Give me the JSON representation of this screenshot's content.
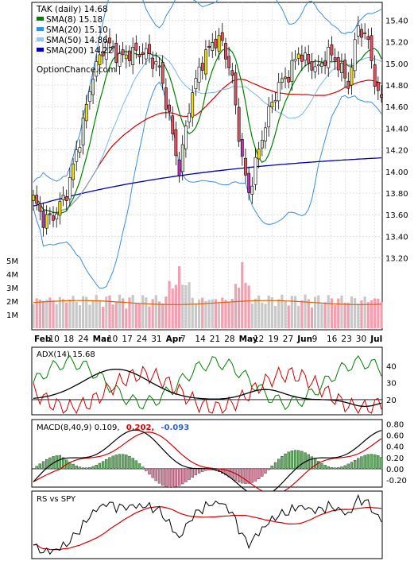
{
  "chart_data": [
    {
      "panel": "price",
      "type": "candlestick",
      "ticker_label": "TAK (daily) 14.68",
      "legend": [
        {
          "label": "SMA(8) 15.18",
          "color": "#008000"
        },
        {
          "label": "SMA(20) 15.10",
          "color": "#3a8ee0"
        },
        {
          "label": "SMA(50) 14.86",
          "color": "#8ccbf0"
        },
        {
          "label": "SMA(200) 14.22",
          "color": "#0000aa"
        }
      ],
      "watermark": "OptionChance.com",
      "legend_placement": "top-left",
      "y_axis": {
        "side": "right",
        "ticks": [
          "15.40",
          "15.20",
          "15.00",
          "14.80",
          "14.60",
          "14.40",
          "14.20",
          "14.00",
          "13.80",
          "13.60",
          "13.40",
          "13.20"
        ],
        "ylim": [
          13.05,
          15.55
        ]
      },
      "x_ticks": [
        "Feb",
        "10",
        "18",
        "24",
        "Mar",
        "10",
        "17",
        "24",
        "31",
        "Apr",
        "7",
        "14",
        "21",
        "28",
        "May",
        "12",
        "19",
        "27",
        "Jun",
        "9",
        "16",
        "23",
        "30",
        "Jul"
      ],
      "colors": {
        "up_candle": "#d0e0c8",
        "down_candle": "#e85060",
        "candle_outline": "#000000",
        "bollinger": "#3a8ee0",
        "sma8": "#008000",
        "sma20_red": "#d00000",
        "sma200": "#0000aa",
        "highlight": "#f0e000",
        "big_candle": "#c030c0"
      },
      "price_anchors": [
        {
          "day": 0,
          "close": 13.75
        },
        {
          "day": 3,
          "close": 13.55
        },
        {
          "day": 6,
          "close": 13.58
        },
        {
          "day": 10,
          "close": 13.8
        },
        {
          "day": 14,
          "close": 14.3
        },
        {
          "day": 18,
          "close": 14.9
        },
        {
          "day": 22,
          "close": 15.2
        },
        {
          "day": 26,
          "close": 15.05
        },
        {
          "day": 30,
          "close": 15.1
        },
        {
          "day": 34,
          "close": 15.1
        },
        {
          "day": 38,
          "close": 14.95
        },
        {
          "day": 41,
          "close": 14.5
        },
        {
          "day": 44,
          "close": 14.0
        },
        {
          "day": 47,
          "close": 14.6
        },
        {
          "day": 50,
          "close": 14.95
        },
        {
          "day": 54,
          "close": 15.2
        },
        {
          "day": 57,
          "close": 15.2
        },
        {
          "day": 60,
          "close": 14.85
        },
        {
          "day": 63,
          "close": 14.1
        },
        {
          "day": 65,
          "close": 13.8
        },
        {
          "day": 68,
          "close": 14.2
        },
        {
          "day": 71,
          "close": 14.55
        },
        {
          "day": 74,
          "close": 14.8
        },
        {
          "day": 77,
          "close": 14.9
        },
        {
          "day": 80,
          "close": 15.1
        },
        {
          "day": 83,
          "close": 15.0
        },
        {
          "day": 86,
          "close": 14.95
        },
        {
          "day": 89,
          "close": 15.1
        },
        {
          "day": 92,
          "close": 15.0
        },
        {
          "day": 95,
          "close": 14.8
        },
        {
          "day": 98,
          "close": 15.35
        },
        {
          "day": 101,
          "close": 15.2
        },
        {
          "day": 104,
          "close": 14.68
        }
      ]
    },
    {
      "panel": "volume",
      "type": "bar",
      "y_ticks": [
        "5M",
        "4M",
        "3M",
        "2M",
        "1M"
      ],
      "ylim": [
        0,
        5.6
      ],
      "series_colors": {
        "up": "#c8c8c8",
        "down": "#f0a0b0",
        "avg": "#e06000"
      },
      "avg_level": 1.9
    },
    {
      "panel": "adx",
      "type": "line",
      "label": "ADX(14) 15.68",
      "y_ticks": [
        "40",
        "30",
        "20"
      ],
      "ylim": [
        12,
        50
      ],
      "series_colors": {
        "adx": "#000000",
        "plus_di": "#008000",
        "minus_di": "#d00000"
      }
    },
    {
      "panel": "macd",
      "type": "line",
      "label_parts": [
        {
          "text": "MACD(8,40,9) 0.109,",
          "color": "#000000"
        },
        {
          "text": "0.202,",
          "color": "#d00000"
        },
        {
          "text": "-0.093",
          "color": "#3060c0"
        }
      ],
      "y_ticks": [
        "0.80",
        "0.60",
        "0.40",
        "0.20",
        "0.00",
        "-0.20"
      ],
      "ylim": [
        -0.3,
        0.85
      ],
      "series_colors": {
        "macd": "#000000",
        "signal": "#d00000",
        "hist_pos": "#60b060",
        "hist_neg": "#e080a0"
      }
    },
    {
      "panel": "rs",
      "type": "line",
      "label": "RS vs SPY",
      "series_colors": {
        "rs": "#000000",
        "rs_avg": "#d00000"
      }
    }
  ]
}
